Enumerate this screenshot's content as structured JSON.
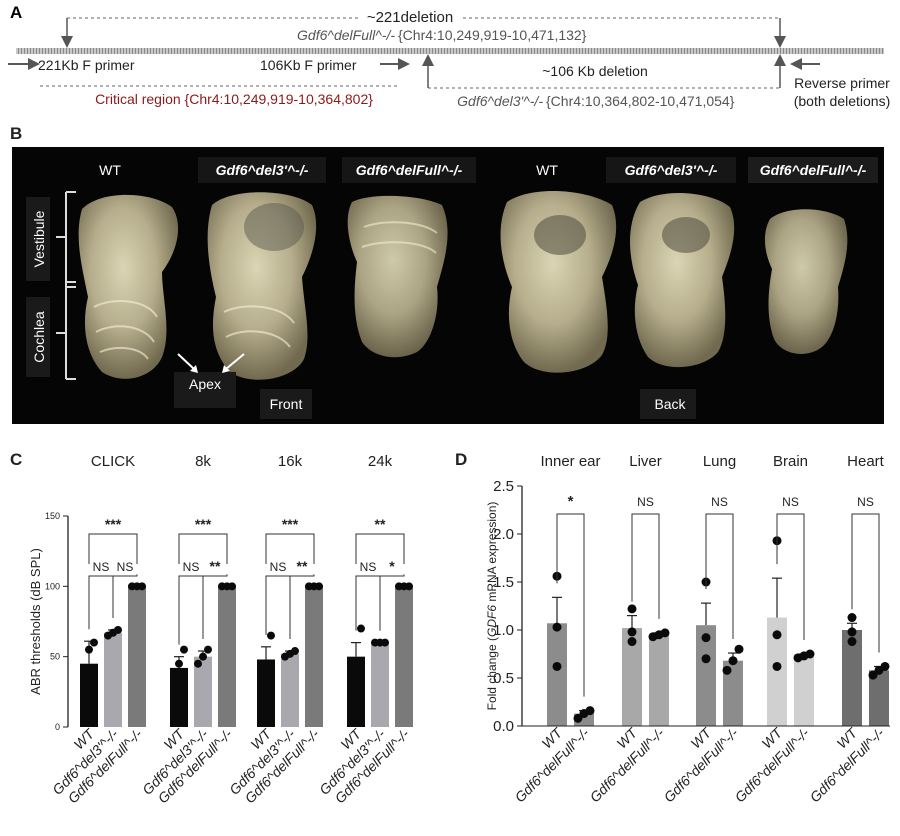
{
  "figure": {
    "panel_a": {
      "letter": "A",
      "top_deletion_label": "~221deletion",
      "full_allele_label": "Gdf6^delFull^-/- ",
      "full_allele_coords": "{Chr4:10,249,919-10,471,132}",
      "primer_221": "221Kb F primer",
      "primer_106": "106Kb F primer",
      "deletion_106_label": "~106 Kb deletion",
      "reverse_primer_1": "Reverse primer",
      "reverse_primer_2": "(both deletions)",
      "critical_region": "Critical region {Chr4:10,249,919-10,364,802}",
      "del3_allele_label": "Gdf6^del3'^-/- ",
      "del3_allele_coords": "{Chr4:10,364,802-10,471,054}",
      "colors": {
        "critical": "#8b1a1a",
        "arrow": "#555555"
      }
    },
    "panel_b": {
      "letter": "B",
      "sample_labels": [
        "WT",
        "Gdf6^del3'^-/-",
        "Gdf6^delFull^-/-",
        "WT",
        "Gdf6^del3'^-/-",
        "Gdf6^delFull^-/-"
      ],
      "vestibule": "Vestibule",
      "cochlea": "Cochlea",
      "apex": "Apex",
      "front": "Front",
      "back": "Back"
    },
    "panel_c": {
      "letter": "C",
      "ylabel": "ABR thresholds (dB SPL)",
      "x_labels": [
        "WT",
        "Gdf6^del3'^-/-",
        "Gdf6^delFull^-/-"
      ]
    },
    "panel_d": {
      "letter": "D",
      "ylabel_prefix": "Fold change (",
      "ylabel_gene": "GDF6",
      "ylabel_suffix": " mRNA expression)",
      "x_labels": [
        "WT",
        "Gdf6^delFull^-/-"
      ]
    }
  },
  "chart_data": [
    {
      "type": "bar",
      "ylabel": "ABR thresholds (dB SPL)",
      "ylim": [
        0,
        150
      ],
      "yticks": [
        0,
        50,
        100,
        150
      ],
      "grid": false,
      "categories": [
        "WT",
        "Gdf6^del3'^-/-",
        "Gdf6^delFull^-/-"
      ],
      "bar_colors": [
        "#0a0a0a",
        "#a8a8ae",
        "#7a7a7a"
      ],
      "groups": [
        {
          "name": "CLICK",
          "values": [
            45,
            67,
            100
          ],
          "errors": [
            16,
            2,
            0
          ],
          "points": [
            [
              20,
              55,
              60
            ],
            [
              65,
              67,
              69
            ],
            [
              100,
              100,
              100
            ]
          ],
          "comparisons": [
            {
              "from": 0,
              "to": 2,
              "label": "***",
              "level": 2
            },
            {
              "from": 0,
              "to": 1,
              "label": "NS",
              "level": 1
            },
            {
              "from": 1,
              "to": 2,
              "label": "NS",
              "level": 1
            }
          ]
        },
        {
          "name": "8k",
          "values": [
            42,
            50,
            100
          ],
          "errors": [
            8,
            4,
            0
          ],
          "points": [
            [
              30,
              45,
              55
            ],
            [
              45,
              50,
              55
            ],
            [
              100,
              100,
              100
            ]
          ],
          "comparisons": [
            {
              "from": 0,
              "to": 2,
              "label": "***",
              "level": 2
            },
            {
              "from": 0,
              "to": 1,
              "label": "NS",
              "level": 1
            },
            {
              "from": 1,
              "to": 2,
              "label": "**",
              "level": 1
            }
          ]
        },
        {
          "name": "16k",
          "values": [
            48,
            52,
            100
          ],
          "errors": [
            9,
            2,
            0
          ],
          "points": [
            [
              35,
              45,
              65
            ],
            [
              50,
              52,
              54
            ],
            [
              100,
              100,
              100
            ]
          ],
          "comparisons": [
            {
              "from": 0,
              "to": 2,
              "label": "***",
              "level": 2
            },
            {
              "from": 0,
              "to": 1,
              "label": "NS",
              "level": 1
            },
            {
              "from": 1,
              "to": 2,
              "label": "**",
              "level": 1
            }
          ]
        },
        {
          "name": "24k",
          "values": [
            50,
            60,
            100
          ],
          "errors": [
            10,
            0,
            0
          ],
          "points": [
            [
              35,
              45,
              70
            ],
            [
              60,
              60,
              60
            ],
            [
              100,
              100,
              100
            ]
          ],
          "comparisons": [
            {
              "from": 0,
              "to": 2,
              "label": "**",
              "level": 2
            },
            {
              "from": 0,
              "to": 1,
              "label": "NS",
              "level": 1
            },
            {
              "from": 1,
              "to": 2,
              "label": "*",
              "level": 1
            }
          ]
        }
      ]
    },
    {
      "type": "bar",
      "ylabel": "Fold change (GDF6 mRNA expression)",
      "ylim": [
        0,
        2.5
      ],
      "yticks": [
        0.0,
        0.5,
        1.0,
        1.5,
        2.0,
        2.5
      ],
      "grid": false,
      "categories": [
        "WT",
        "Gdf6^delFull^-/-"
      ],
      "groups": [
        {
          "name": "Inner ear",
          "values": [
            1.07,
            0.13
          ],
          "errors": [
            0.27,
            0.03
          ],
          "points": [
            [
              0.62,
              1.03,
              1.56
            ],
            [
              0.08,
              0.13,
              0.16
            ]
          ],
          "comparison": "*",
          "bar_colors": [
            "#8c8c8c",
            "#8c8c8c"
          ]
        },
        {
          "name": "Liver",
          "values": [
            1.02,
            0.95
          ],
          "errors": [
            0.13,
            0.02
          ],
          "points": [
            [
              0.88,
              0.98,
              1.22
            ],
            [
              0.93,
              0.95,
              0.97
            ]
          ],
          "comparison": "NS",
          "bar_colors": [
            "#a8a8a8",
            "#a8a8a8"
          ]
        },
        {
          "name": "Lung",
          "values": [
            1.05,
            0.68
          ],
          "errors": [
            0.23,
            0.08
          ],
          "points": [
            [
              0.7,
              0.92,
              1.5
            ],
            [
              0.58,
              0.68,
              0.8
            ]
          ],
          "comparison": "NS",
          "bar_colors": [
            "#8c8c8c",
            "#8c8c8c"
          ]
        },
        {
          "name": "Brain",
          "values": [
            1.13,
            0.73
          ],
          "errors": [
            0.41,
            0.02
          ],
          "points": [
            [
              0.62,
              0.95,
              1.93
            ],
            [
              0.71,
              0.73,
              0.75
            ]
          ],
          "comparison": "NS",
          "bar_colors": [
            "#d0d0d0",
            "#d0d0d0"
          ]
        },
        {
          "name": "Heart",
          "values": [
            1.0,
            0.58
          ],
          "errors": [
            0.07,
            0.04
          ],
          "points": [
            [
              0.88,
              0.98,
              1.13
            ],
            [
              0.53,
              0.58,
              0.62
            ]
          ],
          "comparison": "NS",
          "bar_colors": [
            "#6e6e6e",
            "#6e6e6e"
          ]
        }
      ]
    }
  ]
}
